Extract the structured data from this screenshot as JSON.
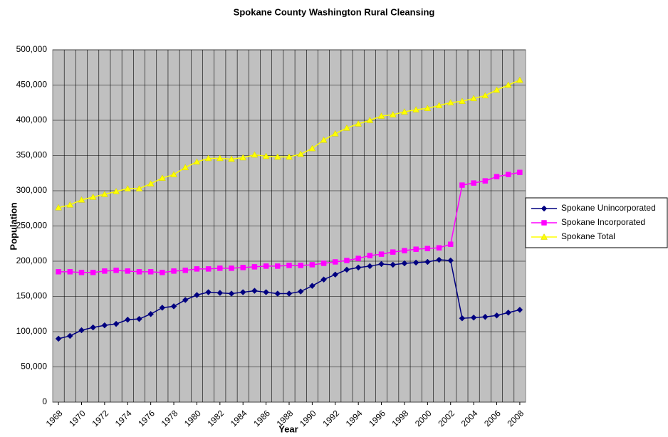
{
  "chart_data": {
    "type": "line",
    "title": "Spokane County Washington Rural Cleansing",
    "xlabel": "Year",
    "ylabel": "Population",
    "x": [
      1968,
      1969,
      1970,
      1971,
      1972,
      1973,
      1974,
      1975,
      1976,
      1977,
      1978,
      1979,
      1980,
      1981,
      1982,
      1983,
      1984,
      1985,
      1986,
      1987,
      1988,
      1989,
      1990,
      1991,
      1992,
      1993,
      1994,
      1995,
      1996,
      1997,
      1998,
      1999,
      2000,
      2001,
      2002,
      2003,
      2004,
      2005,
      2006,
      2007,
      2008
    ],
    "xlim": [
      1967.5,
      2008.5
    ],
    "xticks": [
      1968,
      1970,
      1972,
      1974,
      1976,
      1978,
      1980,
      1982,
      1984,
      1986,
      1988,
      1990,
      1992,
      1994,
      1996,
      1998,
      2000,
      2002,
      2004,
      2006,
      2008
    ],
    "ylim": [
      0,
      500000
    ],
    "yticks": [
      0,
      {
        "value": 50000,
        "label": "50,000"
      },
      {
        "value": 100000,
        "label": "100,000"
      },
      {
        "value": 150000,
        "label": "150,000"
      },
      {
        "value": 200000,
        "label": "200,000"
      },
      {
        "value": 250000,
        "label": "250,000"
      },
      {
        "value": 300000,
        "label": "300,000"
      },
      {
        "value": 350000,
        "label": "350,000"
      },
      {
        "value": 400000,
        "label": "400,000"
      },
      {
        "value": 450000,
        "label": "450,000"
      },
      {
        "value": 500000,
        "label": "500,000"
      }
    ],
    "grid": true,
    "legend": "right",
    "series": [
      {
        "name": "Spokane Unincorporated",
        "color": "#000080",
        "marker": "diamond",
        "values": [
          90000,
          94000,
          102000,
          106000,
          109000,
          111000,
          117000,
          118000,
          125000,
          134000,
          136000,
          145000,
          152000,
          156000,
          155000,
          154000,
          156000,
          158000,
          156000,
          154000,
          154000,
          157000,
          165000,
          174000,
          181000,
          188000,
          191000,
          193000,
          196000,
          195000,
          197000,
          198000,
          199000,
          202000,
          201000,
          119000,
          120000,
          121000,
          123000,
          127000,
          131000
        ]
      },
      {
        "name": "Spokane Incorporated",
        "color": "#ff00ff",
        "marker": "square",
        "values": [
          185000,
          185000,
          184000,
          184000,
          186000,
          187000,
          186000,
          185000,
          185000,
          184000,
          186000,
          187000,
          189000,
          189000,
          190000,
          190000,
          191000,
          192000,
          193000,
          193000,
          194000,
          194000,
          195000,
          197000,
          199000,
          201000,
          204000,
          208000,
          210000,
          213000,
          215000,
          217000,
          218000,
          219000,
          224000,
          308000,
          311000,
          314000,
          320000,
          323000,
          326000
        ]
      },
      {
        "name": "Spokane Total",
        "color": "#ffff00",
        "marker": "triangle",
        "values": [
          276000,
          280000,
          287000,
          291000,
          295000,
          299000,
          303000,
          303000,
          310000,
          318000,
          323000,
          333000,
          341000,
          346000,
          346000,
          345000,
          347000,
          351000,
          349000,
          348000,
          348000,
          352000,
          360000,
          372000,
          381000,
          389000,
          395000,
          400000,
          406000,
          408000,
          412000,
          415000,
          417000,
          421000,
          425000,
          427000,
          431000,
          435000,
          443000,
          450000,
          457000
        ]
      }
    ]
  }
}
